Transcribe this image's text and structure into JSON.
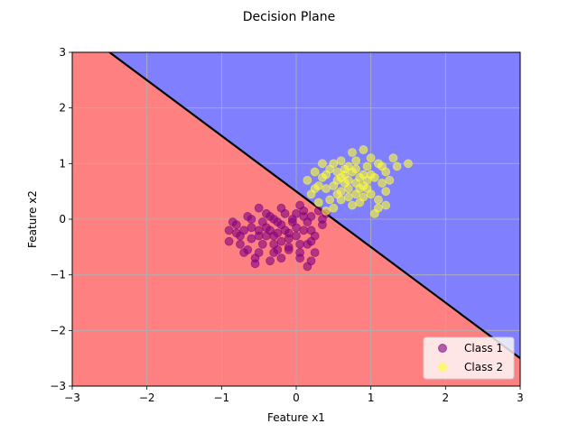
{
  "chart_data": {
    "type": "scatter",
    "title": "Decision Plane",
    "xlabel": "Feature x1",
    "ylabel": "Feature x2",
    "xlim": [
      -3,
      3
    ],
    "ylim": [
      -3,
      3
    ],
    "xticks": [
      -3,
      -2,
      -1,
      0,
      1,
      2,
      3
    ],
    "yticks": [
      -3,
      -2,
      -1,
      0,
      1,
      2,
      3
    ],
    "xtick_labels": [
      "−3",
      "−2",
      "−1",
      "0",
      "1",
      "2",
      "3"
    ],
    "ytick_labels": [
      "−3",
      "−2",
      "−1",
      "0",
      "1",
      "2",
      "3"
    ],
    "grid": true,
    "legend_position": "lower-right",
    "decision_boundary": {
      "points": [
        [
          -2.5,
          3.0
        ],
        [
          3.0,
          -2.5
        ]
      ],
      "above_region_color": "#8080ff",
      "below_region_color": "#ff8080",
      "line_color": "#000000"
    },
    "series": [
      {
        "name": "Class 1",
        "color": "#800080",
        "points": [
          [
            -0.35,
            -0.2
          ],
          [
            -0.5,
            -0.3
          ],
          [
            -0.2,
            -0.1
          ],
          [
            -0.1,
            -0.5
          ],
          [
            0.0,
            -0.3
          ],
          [
            -0.6,
            0.0
          ],
          [
            -0.3,
            -0.6
          ],
          [
            -0.4,
            0.1
          ],
          [
            0.1,
            -0.2
          ],
          [
            0.2,
            -0.4
          ],
          [
            -0.7,
            -0.2
          ],
          [
            -0.8,
            -0.1
          ],
          [
            -0.9,
            -0.4
          ],
          [
            -0.55,
            -0.8
          ],
          [
            -0.2,
            -0.7
          ],
          [
            0.15,
            -0.85
          ],
          [
            0.2,
            0.05
          ],
          [
            0.3,
            0.15
          ],
          [
            0.05,
            0.25
          ],
          [
            -0.15,
            0.1
          ],
          [
            -0.25,
            -0.25
          ],
          [
            -0.45,
            -0.45
          ],
          [
            -0.65,
            -0.55
          ],
          [
            0.25,
            -0.6
          ],
          [
            0.05,
            -0.7
          ],
          [
            -0.05,
            -0.05
          ],
          [
            -0.3,
            0.0
          ],
          [
            0.1,
            0.05
          ],
          [
            -0.4,
            -0.15
          ],
          [
            -0.6,
            -0.35
          ],
          [
            -0.75,
            -0.3
          ],
          [
            -0.85,
            -0.05
          ],
          [
            -0.5,
            0.2
          ],
          [
            -0.2,
            0.2
          ],
          [
            0.0,
            0.1
          ],
          [
            0.15,
            -0.45
          ],
          [
            0.35,
            -0.1
          ],
          [
            -0.1,
            -0.35
          ],
          [
            -0.3,
            -0.45
          ],
          [
            -0.5,
            -0.6
          ],
          [
            -0.7,
            -0.6
          ],
          [
            -0.35,
            -0.75
          ],
          [
            -0.1,
            -0.55
          ],
          [
            0.05,
            -0.45
          ],
          [
            0.25,
            -0.3
          ],
          [
            -0.25,
            -0.05
          ],
          [
            -0.45,
            -0.05
          ],
          [
            -0.15,
            -0.2
          ],
          [
            0.0,
            -0.15
          ],
          [
            -0.6,
            -0.15
          ],
          [
            -0.8,
            -0.25
          ],
          [
            -0.4,
            -0.3
          ],
          [
            -0.2,
            -0.4
          ],
          [
            0.2,
            -0.2
          ],
          [
            0.35,
            0.0
          ],
          [
            -0.55,
            -0.7
          ],
          [
            -0.3,
            -0.3
          ],
          [
            -0.1,
            -0.25
          ],
          [
            0.05,
            -0.6
          ],
          [
            -0.65,
            0.05
          ],
          [
            0.15,
            -0.05
          ],
          [
            -0.75,
            -0.45
          ],
          [
            0.4,
            0.1
          ],
          [
            0.1,
            0.15
          ],
          [
            -0.05,
            0.0
          ],
          [
            -0.35,
            0.05
          ],
          [
            -0.5,
            -0.2
          ],
          [
            -0.25,
            -0.55
          ],
          [
            0.2,
            -0.75
          ],
          [
            -0.9,
            -0.2
          ]
        ]
      },
      {
        "name": "Class 2",
        "color": "#ffff33",
        "points": [
          [
            0.7,
            0.7
          ],
          [
            0.8,
            0.9
          ],
          [
            0.6,
            0.5
          ],
          [
            0.9,
            0.6
          ],
          [
            1.0,
            0.8
          ],
          [
            0.5,
            1.0
          ],
          [
            0.75,
            1.2
          ],
          [
            1.1,
            1.0
          ],
          [
            1.2,
            0.5
          ],
          [
            0.4,
            0.8
          ],
          [
            0.3,
            0.6
          ],
          [
            0.85,
            0.3
          ],
          [
            1.1,
            0.2
          ],
          [
            1.3,
            1.1
          ],
          [
            1.5,
            1.0
          ],
          [
            0.65,
            0.9
          ],
          [
            0.55,
            0.7
          ],
          [
            0.95,
            0.95
          ],
          [
            0.45,
            0.35
          ],
          [
            0.25,
            0.85
          ],
          [
            0.2,
            0.45
          ],
          [
            0.7,
            0.55
          ],
          [
            0.8,
            0.45
          ],
          [
            1.0,
            0.45
          ],
          [
            1.15,
            0.65
          ],
          [
            0.6,
            1.05
          ],
          [
            0.9,
            1.25
          ],
          [
            1.2,
            0.85
          ],
          [
            0.35,
            1.0
          ],
          [
            0.15,
            0.7
          ],
          [
            0.5,
            0.2
          ],
          [
            0.75,
            0.25
          ],
          [
            1.05,
            0.1
          ],
          [
            0.85,
            0.75
          ],
          [
            0.65,
            0.65
          ],
          [
            0.7,
            0.95
          ],
          [
            0.55,
            0.85
          ],
          [
            0.95,
            0.55
          ],
          [
            0.4,
            0.55
          ],
          [
            0.3,
            0.3
          ],
          [
            1.25,
            0.7
          ],
          [
            1.1,
            0.35
          ],
          [
            0.8,
            1.05
          ],
          [
            0.6,
            0.35
          ],
          [
            0.45,
            0.9
          ],
          [
            0.9,
            0.8
          ],
          [
            1.0,
            1.1
          ],
          [
            0.7,
            0.4
          ],
          [
            0.5,
            0.6
          ],
          [
            0.35,
            0.75
          ],
          [
            0.85,
            0.55
          ],
          [
            1.15,
            0.95
          ],
          [
            0.65,
            0.8
          ],
          [
            0.75,
            0.85
          ],
          [
            0.55,
            0.45
          ],
          [
            0.95,
            0.7
          ],
          [
            0.4,
            0.15
          ],
          [
            1.2,
            0.25
          ],
          [
            1.35,
            0.95
          ],
          [
            0.25,
            0.55
          ],
          [
            0.8,
            0.65
          ],
          [
            0.6,
            0.75
          ],
          [
            0.9,
            0.4
          ],
          [
            1.05,
            0.75
          ]
        ]
      }
    ]
  }
}
